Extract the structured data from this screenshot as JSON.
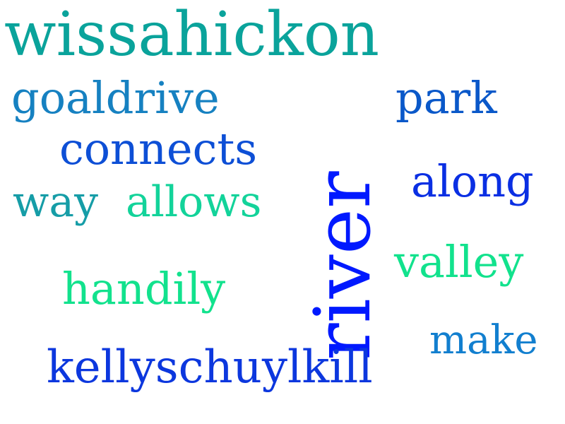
{
  "words": [
    {
      "text": "wissahickon",
      "color": "#0aa39b"
    },
    {
      "text": "goaldrive",
      "color": "#1681c1"
    },
    {
      "text": "park",
      "color": "#0a58c9"
    },
    {
      "text": "connects",
      "color": "#0d4fd6"
    },
    {
      "text": "along",
      "color": "#0a2fe3"
    },
    {
      "text": "way",
      "color": "#169da7"
    },
    {
      "text": "allows",
      "color": "#13d39a"
    },
    {
      "text": "river",
      "color": "#0019ff"
    },
    {
      "text": "valley",
      "color": "#12e28d"
    },
    {
      "text": "handily",
      "color": "#12e28d"
    },
    {
      "text": "make",
      "color": "#127fcf"
    },
    {
      "text": "kellyschuylkill",
      "color": "#0c37de"
    }
  ]
}
